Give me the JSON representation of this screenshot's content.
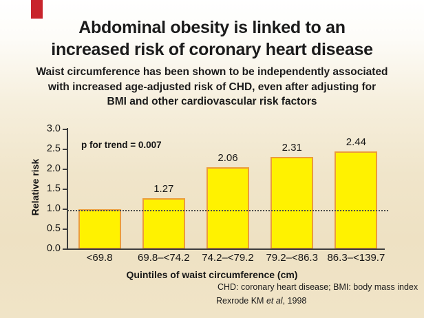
{
  "slide": {
    "title_line1": "Abdominal obesity is linked to an",
    "title_line2": "increased risk of coronary heart disease",
    "subtitle_lines": [
      "Waist circumference has been shown to be independently associated",
      "with increased age-adjusted risk of CHD, even after  adjusting for",
      "BMI and other cardiovascular risk factors"
    ],
    "accent_color": "#c8242c"
  },
  "chart_data": {
    "type": "bar",
    "title": "",
    "categories": [
      "<69.8",
      "69.8–<74.2",
      "74.2–<79.2",
      "79.2–<86.3",
      "86.3–<139.7"
    ],
    "values": [
      1.0,
      1.27,
      2.06,
      2.31,
      2.44
    ],
    "bar_labels": [
      "",
      "1.27",
      "2.06",
      "2.31",
      "2.44"
    ],
    "annotation": "p for trend = 0.007",
    "ylabel": "Relative risk",
    "xlabel": "Quintiles of waist circumference (cm)",
    "ylim": [
      0.0,
      3.0
    ],
    "ytick_step": 0.5,
    "yticks": [
      "3.0",
      "2.5",
      "2.0",
      "1.5",
      "1.0",
      "0.5",
      "0.0"
    ],
    "reference_line": 1.0,
    "grid": false,
    "legend_position": "none",
    "bar_color": "#fff200",
    "bar_border_color": "#eb9c3a",
    "axis_color": "#3c3c3c",
    "reference_line_color": "#4a4a4a"
  },
  "footer": {
    "abbreviations": "CHD: coronary heart disease; BMI: body mass index",
    "citation_prefix": "Rexrode KM ",
    "citation_etal": "et al",
    "citation_suffix": ", 1998"
  }
}
